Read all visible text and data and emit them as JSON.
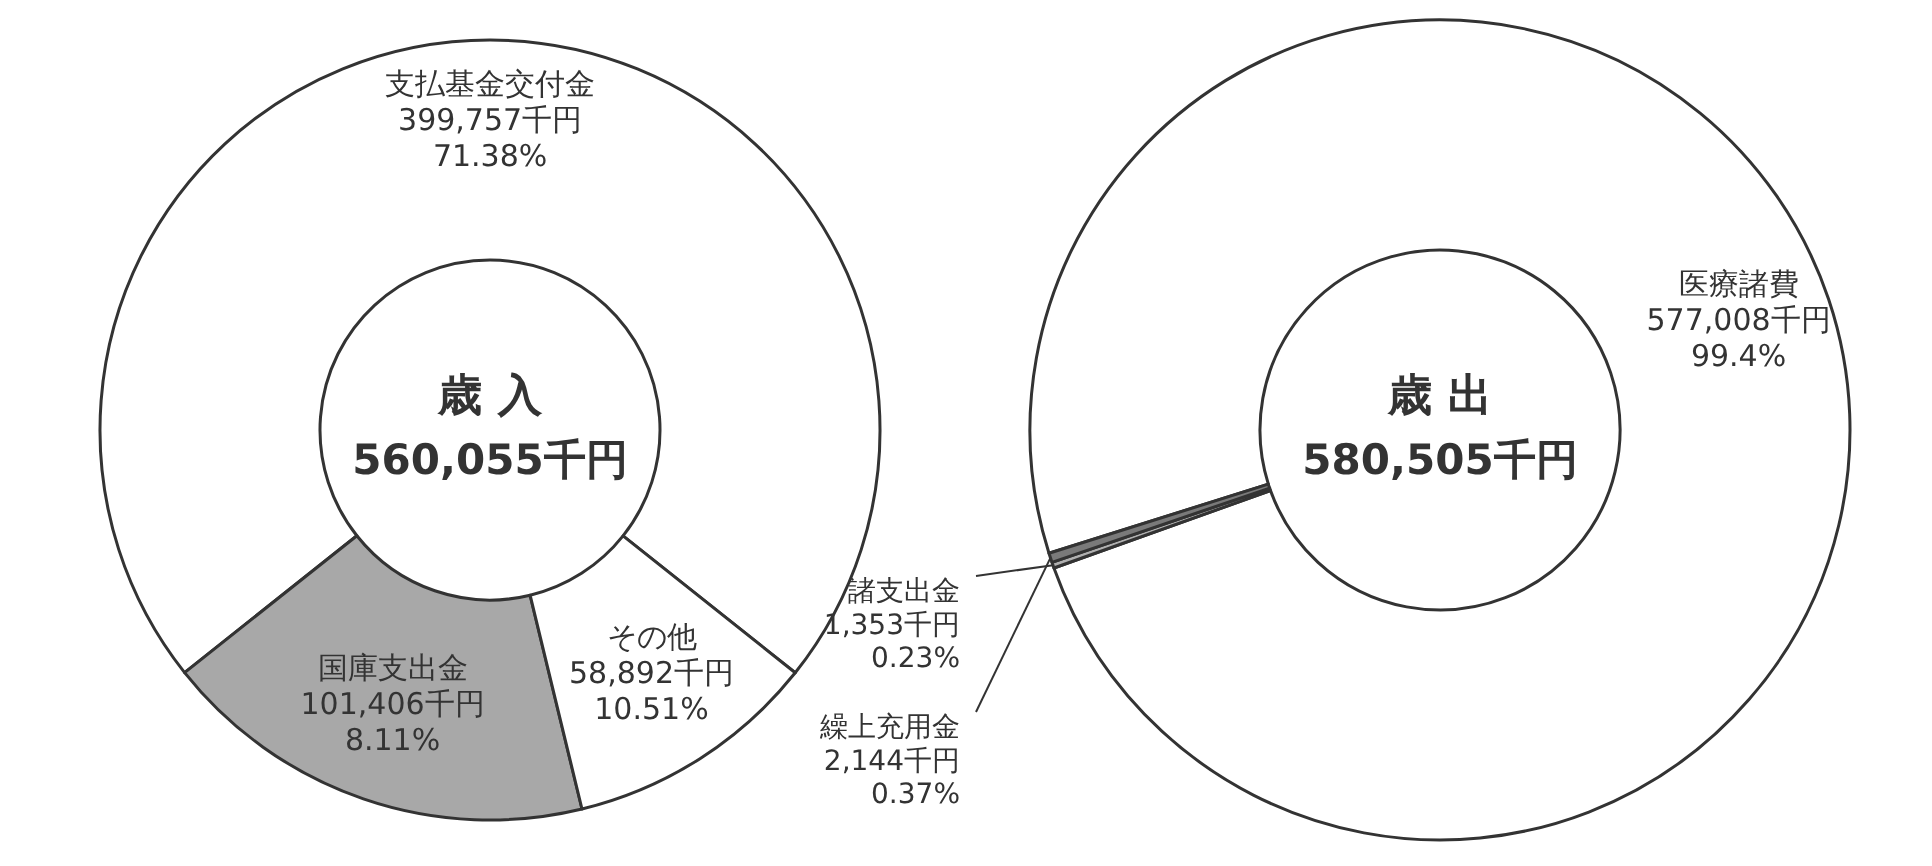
{
  "chart_data": [
    {
      "type": "donut",
      "title": "歳 入",
      "subtitle": "560,055千円",
      "categories": [
        "支払基金交付金",
        "国庫支出金",
        "その他"
      ],
      "values": [
        399757,
        101406,
        58892
      ],
      "colors": [
        "#ffffff",
        "#a8a8a8",
        "#ffffff"
      ],
      "value_labels": [
        "399,757千円 71.38%",
        "101,406千円 8.11%",
        "58,892千円 10.51%"
      ]
    },
    {
      "type": "donut",
      "title": "歳 出",
      "subtitle": "580,505千円",
      "categories": [
        "医療諸費",
        "諸支出金",
        "繰上充用金"
      ],
      "values": [
        577008,
        1353,
        2144
      ],
      "colors": [
        "#ffffff",
        "#b0b0b0",
        "#7a7a7a"
      ],
      "value_labels": [
        "577,008千円 99.4%",
        "1,353千円 0.23%",
        "2,144千円 0.37%"
      ]
    }
  ]
}
